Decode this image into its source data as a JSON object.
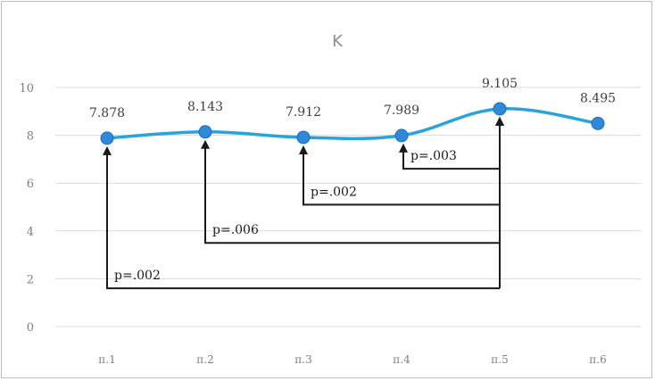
{
  "chart_data": {
    "type": "line",
    "title": "K",
    "xlabel": "",
    "ylabel": "",
    "categories": [
      "п.1",
      "п.2",
      "п.3",
      "п.4",
      "п.5",
      "п.6"
    ],
    "series": [
      {
        "name": "",
        "values": [
          7.878,
          8.143,
          7.912,
          7.989,
          9.105,
          8.495
        ],
        "data_labels": [
          "7.878",
          "8.143",
          "7.912",
          "7.989",
          "9.105",
          "8.495"
        ],
        "color": "#29a3dc",
        "marker_color": "#2f88d8",
        "smooth": true
      }
    ],
    "ylim": [
      0,
      10
    ],
    "yticks": [
      0,
      2,
      4,
      6,
      8,
      10
    ],
    "grid": true,
    "legend": "none",
    "annotations": [
      {
        "from": "п.4",
        "to": "п.5",
        "label": "p=.003",
        "bracket_y": 6.6
      },
      {
        "from": "п.3",
        "to": "п.5",
        "label": "p=.002",
        "bracket_y": 5.1
      },
      {
        "from": "п.2",
        "to": "п.5",
        "label": "p=.006",
        "bracket_y": 3.5
      },
      {
        "from": "п.1",
        "to": "п.5",
        "label": "p=.002",
        "bracket_y": 1.6
      }
    ],
    "annotation_color": "#1a1a1a"
  }
}
